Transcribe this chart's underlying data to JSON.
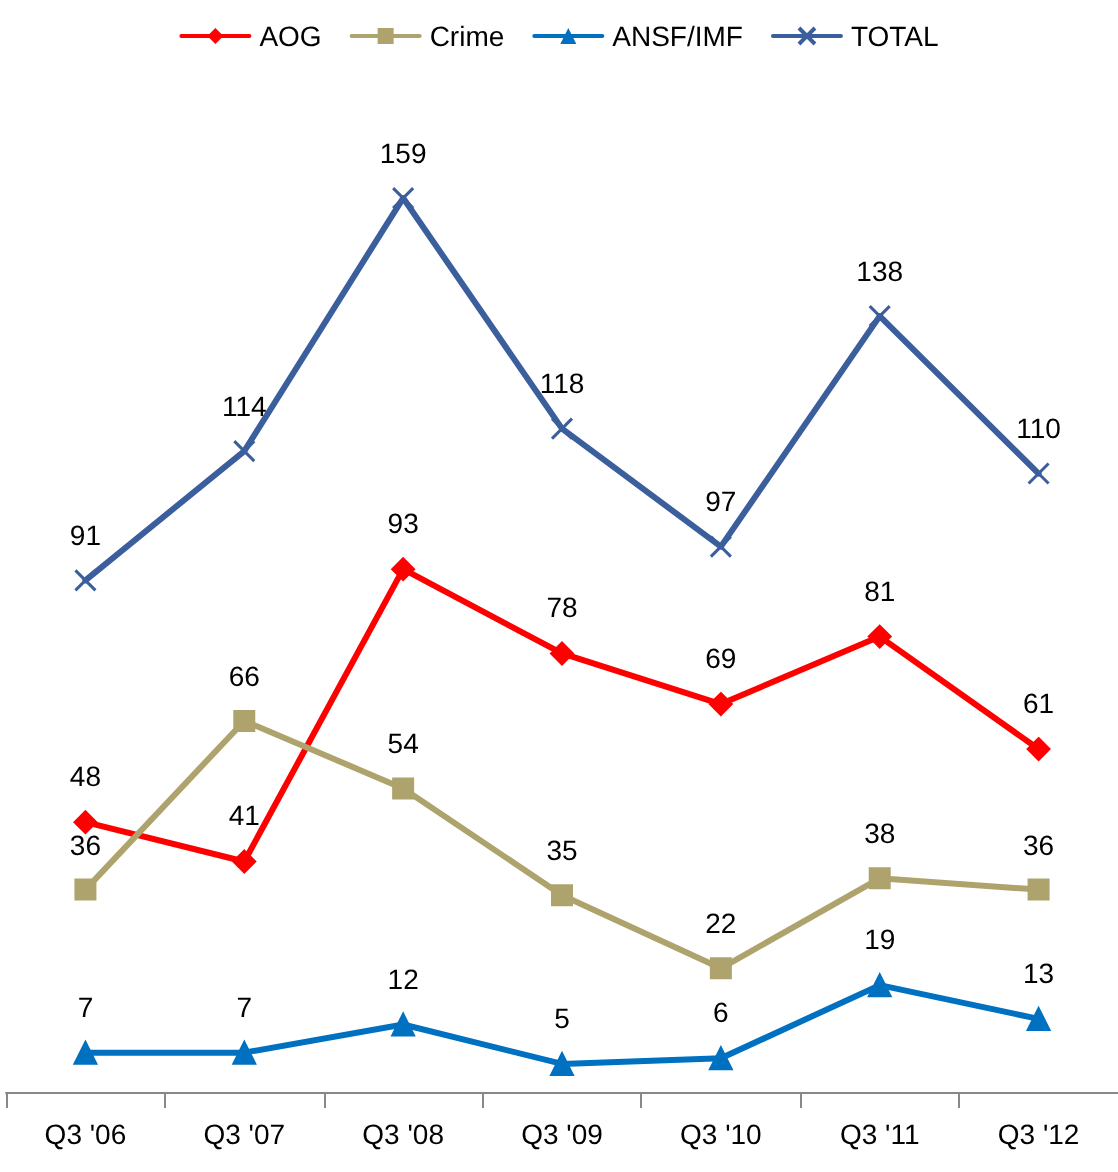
{
  "chart_data": {
    "type": "line",
    "categories": [
      "Q3 '06",
      "Q3 '07",
      "Q3 '08",
      "Q3 '09",
      "Q3 '10",
      "Q3 '11",
      "Q3 '12"
    ],
    "series": [
      {
        "name": "AOG",
        "color": "#ff0000",
        "marker": "diamond",
        "values": [
          48,
          41,
          93,
          78,
          69,
          81,
          61
        ]
      },
      {
        "name": "Crime",
        "color": "#aea36c",
        "marker": "square",
        "values": [
          36,
          66,
          54,
          35,
          22,
          38,
          36
        ]
      },
      {
        "name": "ANSF/IMF",
        "color": "#0070c0",
        "marker": "triangle",
        "values": [
          7,
          7,
          12,
          5,
          6,
          19,
          13
        ]
      },
      {
        "name": "TOTAL",
        "color": "#3b5e9c",
        "marker": "cross",
        "values": [
          91,
          114,
          159,
          118,
          97,
          138,
          110
        ]
      }
    ],
    "data_labels": true,
    "legend": "top",
    "grid": false,
    "line_style": "solid"
  }
}
